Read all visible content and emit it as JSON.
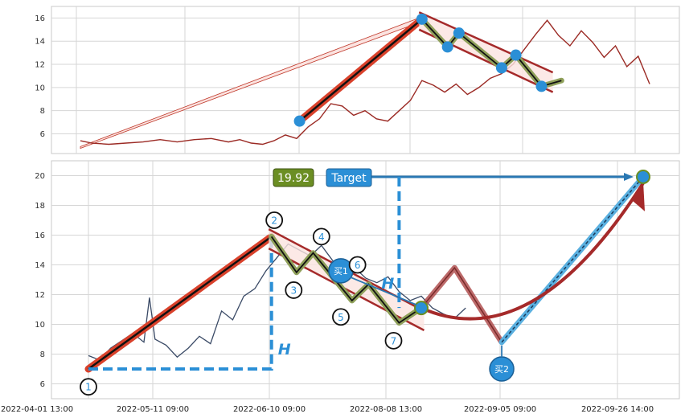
{
  "chart_data": [
    {
      "type": "line",
      "panel": "top",
      "ylim": [
        4.3,
        17.0
      ],
      "yticks": [
        6,
        8,
        10,
        12,
        14,
        16
      ],
      "grid": true,
      "price_series": [
        [
          0.0,
          5.4
        ],
        [
          0.02,
          5.2
        ],
        [
          0.05,
          5.1
        ],
        [
          0.08,
          5.2
        ],
        [
          0.11,
          5.3
        ],
        [
          0.14,
          5.5
        ],
        [
          0.17,
          5.3
        ],
        [
          0.2,
          5.5
        ],
        [
          0.23,
          5.6
        ],
        [
          0.26,
          5.3
        ],
        [
          0.28,
          5.5
        ],
        [
          0.3,
          5.2
        ],
        [
          0.32,
          5.1
        ],
        [
          0.34,
          5.4
        ],
        [
          0.36,
          5.9
        ],
        [
          0.38,
          5.6
        ],
        [
          0.4,
          6.6
        ],
        [
          0.42,
          7.3
        ],
        [
          0.44,
          8.6
        ],
        [
          0.46,
          8.4
        ],
        [
          0.48,
          7.6
        ],
        [
          0.5,
          8.0
        ],
        [
          0.52,
          7.3
        ],
        [
          0.54,
          7.1
        ],
        [
          0.56,
          8.0
        ],
        [
          0.58,
          8.9
        ],
        [
          0.6,
          10.6
        ],
        [
          0.62,
          10.2
        ],
        [
          0.64,
          9.6
        ],
        [
          0.66,
          10.3
        ],
        [
          0.68,
          9.4
        ],
        [
          0.7,
          10.0
        ],
        [
          0.72,
          10.8
        ],
        [
          0.74,
          11.2
        ],
        [
          0.76,
          12.0
        ],
        [
          0.78,
          13.3
        ],
        [
          0.8,
          14.6
        ],
        [
          0.82,
          15.8
        ],
        [
          0.84,
          14.5
        ],
        [
          0.86,
          13.6
        ],
        [
          0.88,
          14.9
        ],
        [
          0.9,
          13.9
        ],
        [
          0.92,
          12.6
        ],
        [
          0.94,
          13.6
        ],
        [
          0.96,
          11.8
        ],
        [
          0.98,
          12.7
        ],
        [
          1.0,
          10.3
        ]
      ],
      "trend_up": {
        "from": [
          0.385,
          7.1
        ],
        "to": [
          0.6,
          15.9
        ]
      },
      "zigzag": [
        [
          0.6,
          15.9
        ],
        [
          0.645,
          13.5
        ],
        [
          0.665,
          14.7
        ],
        [
          0.74,
          11.7
        ],
        [
          0.765,
          12.8
        ],
        [
          0.81,
          10.1
        ],
        [
          0.845,
          10.6
        ]
      ],
      "channel": {
        "upper": [
          [
            0.595,
            16.5
          ],
          [
            0.83,
            11.3
          ]
        ],
        "lower": [
          [
            0.595,
            15.0
          ],
          [
            0.83,
            9.6
          ]
        ]
      },
      "points": [
        [
          0.385,
          7.1
        ],
        [
          0.6,
          15.9
        ],
        [
          0.645,
          13.5
        ],
        [
          0.665,
          14.7
        ],
        [
          0.74,
          11.7
        ],
        [
          0.765,
          12.8
        ],
        [
          0.81,
          10.1
        ]
      ]
    },
    {
      "type": "line",
      "panel": "bottom",
      "ylim": [
        5.0,
        21.0
      ],
      "yticks": [
        6,
        8,
        10,
        12,
        14,
        16,
        18,
        20
      ],
      "x_tick_labels": [
        "2022-04-01 13:00",
        "2022-05-11 09:00",
        "2022-06-10 09:00",
        "2022-08-08 13:00",
        "2022-09-05 09:00",
        "2022-09-26 14:00"
      ],
      "grid": true,
      "price_series": [
        [
          0.0,
          7.9
        ],
        [
          0.02,
          7.6
        ],
        [
          0.04,
          8.4
        ],
        [
          0.06,
          8.9
        ],
        [
          0.08,
          9.4
        ],
        [
          0.1,
          8.8
        ],
        [
          0.11,
          11.8
        ],
        [
          0.12,
          9.0
        ],
        [
          0.14,
          8.6
        ],
        [
          0.16,
          7.8
        ],
        [
          0.18,
          8.4
        ],
        [
          0.2,
          9.2
        ],
        [
          0.22,
          8.7
        ],
        [
          0.24,
          10.9
        ],
        [
          0.26,
          10.3
        ],
        [
          0.28,
          11.9
        ],
        [
          0.3,
          12.4
        ],
        [
          0.32,
          13.6
        ],
        [
          0.34,
          14.5
        ],
        [
          0.36,
          15.4
        ],
        [
          0.38,
          15.0
        ],
        [
          0.4,
          14.6
        ],
        [
          0.42,
          15.3
        ],
        [
          0.44,
          14.3
        ],
        [
          0.46,
          13.5
        ],
        [
          0.48,
          13.8
        ],
        [
          0.5,
          13.1
        ],
        [
          0.52,
          12.8
        ],
        [
          0.54,
          13.2
        ],
        [
          0.56,
          12.2
        ],
        [
          0.58,
          11.6
        ],
        [
          0.6,
          11.9
        ],
        [
          0.62,
          11.1
        ],
        [
          0.64,
          10.7
        ],
        [
          0.66,
          10.4
        ],
        [
          0.68,
          11.1
        ]
      ],
      "trend_up": {
        "from": [
          0.0,
          7.0
        ],
        "to": [
          0.33,
          15.9
        ]
      },
      "zigzag": [
        [
          0.33,
          15.9
        ],
        [
          0.375,
          13.5
        ],
        [
          0.405,
          14.8
        ],
        [
          0.475,
          11.6
        ],
        [
          0.505,
          12.7
        ],
        [
          0.56,
          10.1
        ],
        [
          0.6,
          11.1
        ]
      ],
      "channel": {
        "upper": [
          [
            0.325,
            16.4
          ],
          [
            0.605,
            10.9
          ]
        ],
        "lower": [
          [
            0.325,
            15.1
          ],
          [
            0.605,
            9.6
          ]
        ]
      },
      "height_marker": {
        "from": [
          0.0,
          7.0
        ],
        "to": [
          0.33,
          15.9
        ],
        "label": "H"
      },
      "target": {
        "value_label": "19.92",
        "text": "Target",
        "y": 19.92,
        "from_x": 0.56,
        "to_x": 1.0,
        "label": "H"
      },
      "path_down_up": [
        [
          0.6,
          11.1
        ],
        [
          0.66,
          13.8
        ],
        [
          0.745,
          8.8
        ]
      ],
      "path_target": [
        [
          0.745,
          8.8
        ],
        [
          1.0,
          19.92
        ]
      ],
      "curve": [
        [
          0.6,
          11.1
        ],
        [
          0.8,
          9.0
        ],
        [
          1.0,
          19.5
        ]
      ],
      "buy_markers": [
        {
          "label": "买1",
          "at": [
            0.455,
            13.6
          ]
        },
        {
          "label": "买2",
          "at": [
            0.745,
            7.0
          ]
        }
      ],
      "pivot_labels": [
        {
          "label": "1",
          "at": [
            0.0,
            5.8
          ]
        },
        {
          "label": "2",
          "at": [
            0.335,
            17.0
          ]
        },
        {
          "label": "3",
          "at": [
            0.37,
            12.3
          ]
        },
        {
          "label": "4",
          "at": [
            0.42,
            15.9
          ]
        },
        {
          "label": "5",
          "at": [
            0.455,
            10.5
          ]
        },
        {
          "label": "6",
          "at": [
            0.485,
            14.0
          ]
        },
        {
          "label": "7",
          "at": [
            0.55,
            8.9
          ]
        }
      ]
    }
  ]
}
